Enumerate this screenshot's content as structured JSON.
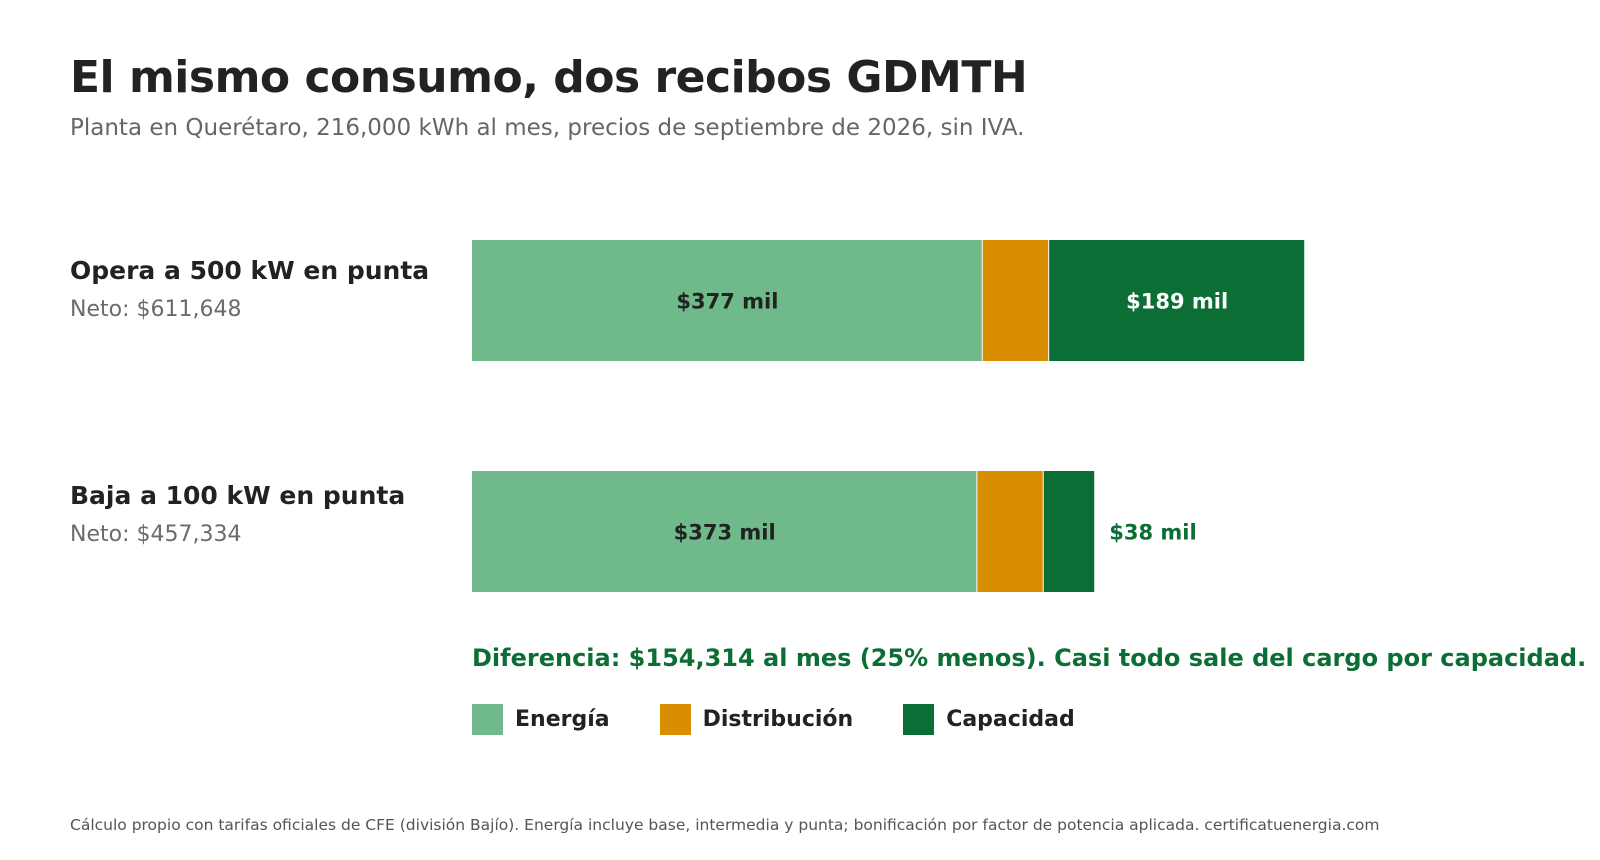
{
  "header": {
    "title": "El mismo consumo, dos recibos GDMTH",
    "subtitle": "Planta en Querétaro, 216,000 kWh al mes, precios de septiembre de 2026, sin IVA."
  },
  "note": "Diferencia: $154,314 al mes (25% menos). Casi todo sale del cargo por capacidad.",
  "footer": "Cálculo propio con tarifas oficiales de CFE (división Bajío). Energía incluye base, intermedia y punta; bonificación por factor de potencia aplicada.  certificatuenergia.com",
  "colors": {
    "energia": "#6fb98a",
    "distribucion": "#d98e00",
    "capacidad": "#0b6e35",
    "label_dark": "#222222",
    "label_light": "#ffffff"
  },
  "chart_data": {
    "type": "bar",
    "orientation": "horizontal",
    "stacked": true,
    "units": "MXN",
    "categories": [
      "Opera a 500 kW en punta",
      "Baja a 100 kW en punta"
    ],
    "net_labels": [
      "Neto: $611,648",
      "Neto: $457,334"
    ],
    "series": [
      {
        "name": "Energía",
        "color": "#6fb98a",
        "values": [
          377000,
          373000
        ],
        "labels": [
          "$377 mil",
          "$373 mil"
        ]
      },
      {
        "name": "Distribución",
        "color": "#d98e00",
        "values": [
          49000,
          49000
        ],
        "labels": [
          "",
          ""
        ]
      },
      {
        "name": "Capacidad",
        "color": "#0b6e35",
        "values": [
          189000,
          38000
        ],
        "labels": [
          "$189 mil",
          "$38 mil"
        ]
      }
    ],
    "xlim": [
      0,
      682000
    ],
    "legend": "bottom-left",
    "grid": false
  }
}
